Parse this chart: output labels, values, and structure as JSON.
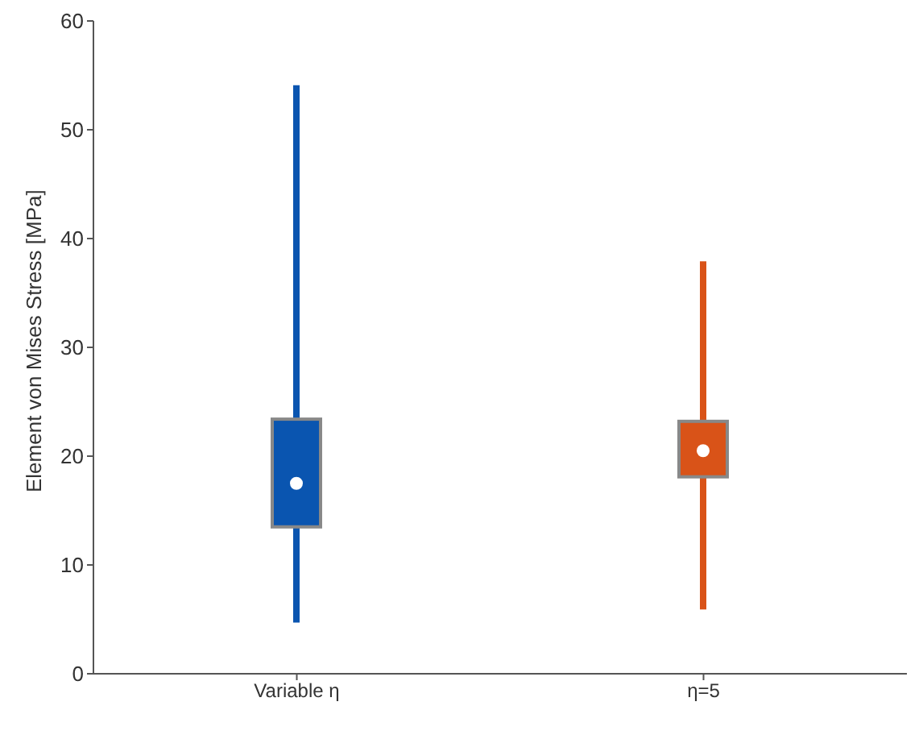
{
  "chart_data": {
    "type": "box",
    "ylabel": "Element von Mises Stress [MPa]",
    "categories": [
      "Variable η",
      "η=5"
    ],
    "colors": [
      "#0a55b0",
      "#d95318"
    ],
    "boxes": [
      {
        "low": 4.7,
        "q1": 13.5,
        "median": 17.5,
        "q3": 23.4,
        "high": 54.1
      },
      {
        "low": 5.9,
        "q1": 18.1,
        "median": 20.5,
        "q3": 23.2,
        "high": 37.9
      }
    ],
    "ylim": [
      0,
      60
    ],
    "yticks": [
      0,
      10,
      20,
      30,
      40,
      50,
      60
    ],
    "grid": false
  }
}
